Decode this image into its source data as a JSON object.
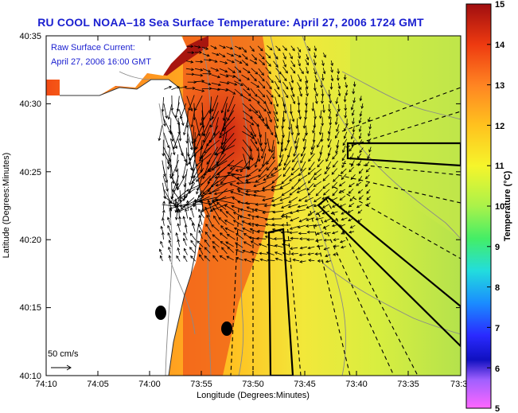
{
  "title": "RU COOL  NOAA–18  Sea Surface Temperature:  April 27, 2006 1724 GMT",
  "current_label": {
    "line1": "Raw Surface Current:",
    "line2": "April 27, 2006 16:00 GMT"
  },
  "scale_label": "50 cm/s",
  "x_axis": {
    "title": "Longitude (Degrees:Minutes)",
    "ticks": [
      "74:10",
      "74:05",
      "74:00",
      "73:55",
      "73:50",
      "73:45",
      "73:40",
      "73:35",
      "73:3"
    ]
  },
  "y_axis": {
    "title": "Latitude (Degrees:Minutes)",
    "ticks": [
      "40:35",
      "40:30",
      "40:25",
      "40:20",
      "40:15",
      "40:10"
    ]
  },
  "colorbar": {
    "title": "Temperature (°C)",
    "ticks": [
      "15",
      "14",
      "13",
      "12",
      "11",
      "10",
      "9",
      "8",
      "7",
      "6",
      "5"
    ],
    "colors": [
      "#ff55ff",
      "#2a2aff",
      "#1a8cff",
      "#22dddd",
      "#44ee66",
      "#aaf24a",
      "#f6f52b",
      "#ffc21e",
      "#ff8422",
      "#ee3a10",
      "#b01010"
    ]
  },
  "colors": {
    "title_blue": "#1a1fd0",
    "land": "#ffffff",
    "warm_sst": "#e43a16",
    "cool_sst": "#b8e04a"
  }
}
